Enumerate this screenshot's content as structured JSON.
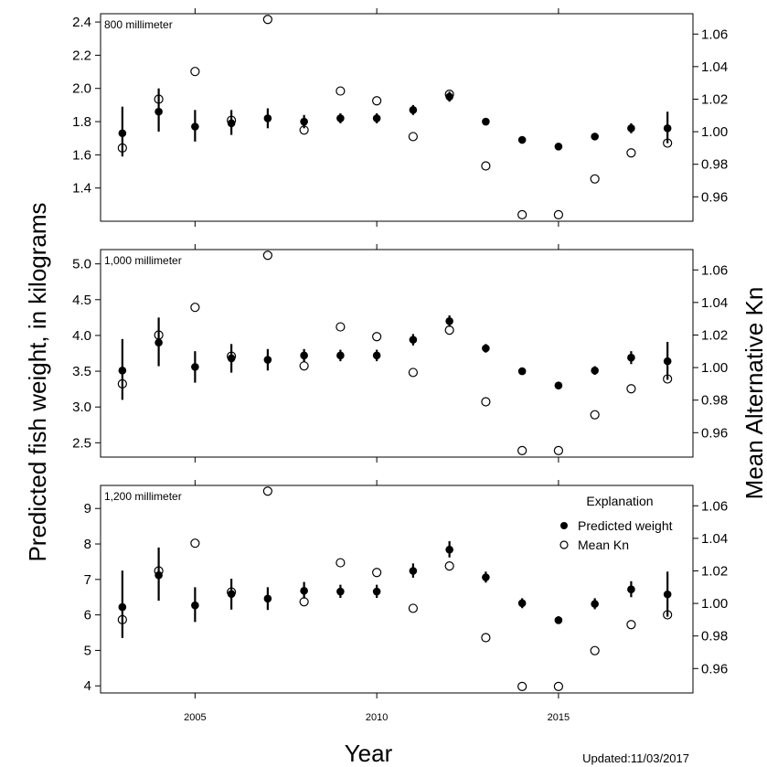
{
  "chart_data": [
    {
      "type": "scatter",
      "panel_label": "800 millimeter",
      "x": [
        2003,
        2004,
        2005,
        2006,
        2007,
        2008,
        2009,
        2010,
        2011,
        2012,
        2013,
        2014,
        2015,
        2016,
        2017,
        2018
      ],
      "series": [
        {
          "name": "Predicted weight",
          "axis": "left",
          "marker": "filled-circle",
          "values": [
            1.73,
            1.86,
            1.77,
            1.79,
            1.82,
            1.8,
            1.82,
            1.82,
            1.87,
            1.95,
            1.8,
            1.69,
            1.65,
            1.71,
            1.76,
            1.76
          ],
          "error_low": [
            1.59,
            1.74,
            1.68,
            1.72,
            1.76,
            1.76,
            1.79,
            1.79,
            1.84,
            1.92,
            1.78,
            1.67,
            1.63,
            1.69,
            1.73,
            1.67
          ],
          "error_high": [
            1.89,
            2.0,
            1.87,
            1.87,
            1.88,
            1.84,
            1.85,
            1.85,
            1.9,
            1.98,
            1.82,
            1.71,
            1.67,
            1.73,
            1.79,
            1.86
          ]
        },
        {
          "name": "Mean Kn",
          "axis": "right",
          "marker": "open-circle",
          "values": [
            0.99,
            1.02,
            1.037,
            1.007,
            1.069,
            1.001,
            1.025,
            1.019,
            0.997,
            1.023,
            0.979,
            0.949,
            0.949,
            0.971,
            0.987,
            0.993
          ]
        }
      ],
      "ylim_left": [
        1.2,
        2.45
      ],
      "yticks_left": [
        1.4,
        1.6,
        1.8,
        2.0,
        2.2,
        2.4
      ],
      "ylim_right": [
        0.945,
        1.0725
      ],
      "yticks_right": [
        0.96,
        0.98,
        1.0,
        1.02,
        1.04,
        1.06
      ]
    },
    {
      "type": "scatter",
      "panel_label": "1,000 millimeter",
      "x": [
        2003,
        2004,
        2005,
        2006,
        2007,
        2008,
        2009,
        2010,
        2011,
        2012,
        2013,
        2014,
        2015,
        2016,
        2017,
        2018
      ],
      "series": [
        {
          "name": "Predicted weight",
          "axis": "left",
          "marker": "filled-circle",
          "values": [
            3.51,
            3.9,
            3.56,
            3.68,
            3.66,
            3.72,
            3.72,
            3.72,
            3.94,
            4.2,
            3.82,
            3.5,
            3.3,
            3.51,
            3.69,
            3.64
          ],
          "error_low": [
            3.1,
            3.57,
            3.34,
            3.48,
            3.51,
            3.63,
            3.64,
            3.64,
            3.86,
            4.12,
            3.76,
            3.45,
            3.25,
            3.45,
            3.6,
            3.38
          ],
          "error_high": [
            3.95,
            4.25,
            3.78,
            3.88,
            3.81,
            3.81,
            3.8,
            3.8,
            4.02,
            4.28,
            3.88,
            3.55,
            3.35,
            3.57,
            3.78,
            3.91
          ]
        },
        {
          "name": "Mean Kn",
          "axis": "right",
          "marker": "open-circle",
          "values": [
            0.99,
            1.02,
            1.037,
            1.007,
            1.069,
            1.001,
            1.025,
            1.019,
            0.997,
            1.023,
            0.979,
            0.949,
            0.949,
            0.971,
            0.987,
            0.993
          ]
        }
      ],
      "ylim_left": [
        2.3,
        5.2
      ],
      "yticks_left": [
        2.5,
        3.0,
        3.5,
        4.0,
        4.5,
        5.0
      ],
      "ylim_right": [
        0.945,
        1.0725
      ],
      "yticks_right": [
        0.96,
        0.98,
        1.0,
        1.02,
        1.04,
        1.06
      ]
    },
    {
      "type": "scatter",
      "panel_label": "1,200 millimeter",
      "x": [
        2003,
        2004,
        2005,
        2006,
        2007,
        2008,
        2009,
        2010,
        2011,
        2012,
        2013,
        2014,
        2015,
        2016,
        2017,
        2018
      ],
      "series": [
        {
          "name": "Predicted weight",
          "axis": "left",
          "marker": "filled-circle",
          "values": [
            6.22,
            7.12,
            6.27,
            6.59,
            6.46,
            6.68,
            6.66,
            6.66,
            7.24,
            7.84,
            7.06,
            6.33,
            5.85,
            6.31,
            6.72,
            6.58
          ],
          "error_low": [
            5.35,
            6.4,
            5.8,
            6.15,
            6.14,
            6.46,
            6.48,
            6.48,
            7.05,
            7.62,
            6.91,
            6.19,
            5.75,
            6.16,
            6.5,
            5.95
          ],
          "error_high": [
            7.25,
            7.9,
            6.78,
            7.02,
            6.78,
            6.93,
            6.85,
            6.85,
            7.45,
            8.08,
            7.22,
            6.47,
            5.96,
            6.47,
            6.95,
            7.22
          ]
        },
        {
          "name": "Mean Kn",
          "axis": "right",
          "marker": "open-circle",
          "values": [
            0.99,
            1.02,
            1.037,
            1.007,
            1.069,
            1.001,
            1.025,
            1.019,
            0.997,
            1.023,
            0.979,
            0.949,
            0.949,
            0.971,
            0.987,
            0.993
          ]
        }
      ],
      "ylim_left": [
        3.8,
        9.65
      ],
      "yticks_left": [
        4,
        5,
        6,
        7,
        8,
        9
      ],
      "ylim_right": [
        0.945,
        1.0725
      ],
      "yticks_right": [
        0.96,
        0.98,
        1.0,
        1.02,
        1.04,
        1.06
      ]
    }
  ],
  "xlim": [
    2002.4,
    2018.7
  ],
  "xticks": [
    2005,
    2010,
    2015
  ],
  "xlabel": "Year",
  "ylabel_left": "Predicted fish weight, in kilograms",
  "ylabel_right": "Mean Alternative Kn",
  "legend": {
    "title": "Explanation",
    "items": [
      "Predicted weight",
      "Mean Kn"
    ],
    "placement": "bottom panel, upper-right"
  },
  "updated_text": "Updated:11/03/2017",
  "colors": {
    "ink": "#000000",
    "background": "#ffffff"
  }
}
